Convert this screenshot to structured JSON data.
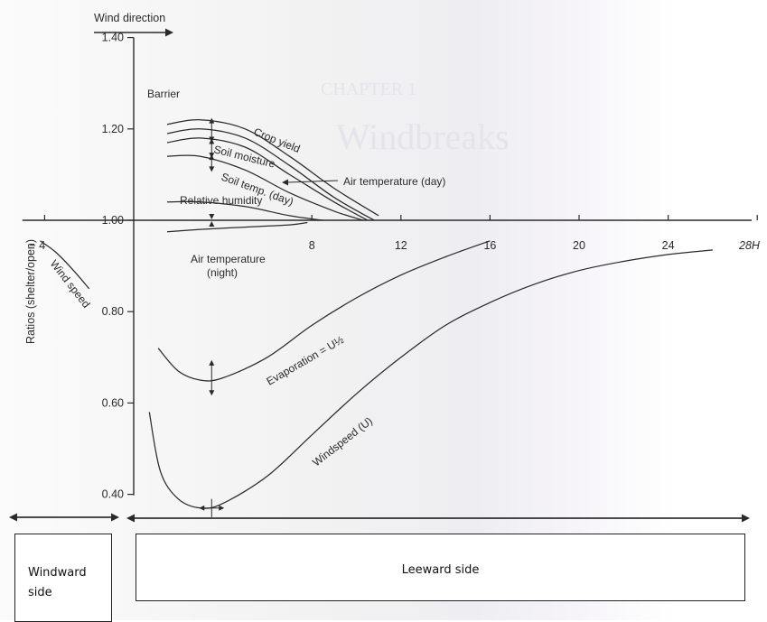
{
  "figure": {
    "wind_direction_label": "Wind direction",
    "barrier_label": "Barrier",
    "ylabel": "Ratios (shelter/open)",
    "x_unit_label": "28H",
    "windward_label": "Windward side",
    "leeward_label": "Leeward side"
  },
  "chart_data": {
    "type": "line",
    "xlabel": "",
    "ylabel": "Ratios (shelter/open)",
    "x_ticks": [
      -4,
      8,
      12,
      16,
      20,
      24,
      28
    ],
    "x_tick_labels": [
      "− 4",
      "8",
      "12",
      "16",
      "20",
      "24",
      "28H"
    ],
    "y_ticks": [
      0.4,
      0.6,
      0.8,
      1.0,
      1.2,
      1.4
    ],
    "y_tick_labels": [
      "0.40",
      "0.60",
      "0.80",
      "1.00",
      "1.20",
      "1.40"
    ],
    "xlim": [
      -5,
      28.5
    ],
    "ylim": [
      0.35,
      1.43
    ],
    "grid": false,
    "series": [
      {
        "name": "Crop yield",
        "x": [
          1.5,
          3,
          5,
          7,
          9,
          11
        ],
        "y": [
          1.21,
          1.22,
          1.2,
          1.14,
          1.07,
          1.01
        ]
      },
      {
        "name": "Soil moisture",
        "x": [
          1.5,
          3,
          5,
          7,
          9,
          10.5
        ],
        "y": [
          1.17,
          1.18,
          1.16,
          1.1,
          1.04,
          1.0
        ]
      },
      {
        "name": "Soil temp. (day)",
        "x": [
          1.5,
          3,
          5,
          7,
          9,
          10.3
        ],
        "y": [
          1.14,
          1.14,
          1.11,
          1.06,
          1.02,
          1.0
        ]
      },
      {
        "name": "Relative humidity",
        "x": [
          1.5,
          3,
          5,
          7,
          8.5
        ],
        "y": [
          1.04,
          1.04,
          1.03,
          1.01,
          1.0
        ]
      },
      {
        "name": "Air temperature (day)",
        "x": [
          1.5,
          3,
          5,
          7,
          9,
          10.8
        ],
        "y": [
          1.19,
          1.2,
          1.18,
          1.12,
          1.05,
          1.0
        ]
      },
      {
        "name": "Air temperature (night)",
        "x": [
          1.5,
          3,
          5,
          7,
          7.8
        ],
        "y": [
          0.975,
          0.98,
          0.985,
          0.99,
          0.995
        ]
      },
      {
        "name": "Wind speed",
        "x": [
          -4.2,
          -3.5,
          -2.7,
          -2.0
        ],
        "y": [
          0.955,
          0.93,
          0.89,
          0.85
        ]
      },
      {
        "name": "Evaporation = U^1/2",
        "x": [
          1.1,
          2,
          3,
          4,
          6,
          8,
          10,
          12,
          14,
          16
        ],
        "y": [
          0.72,
          0.67,
          0.65,
          0.655,
          0.7,
          0.77,
          0.83,
          0.88,
          0.92,
          0.955
        ]
      },
      {
        "name": "Windspeed (U)",
        "x": [
          0.7,
          1.2,
          2,
          3,
          4,
          6,
          8,
          10,
          12,
          14,
          16,
          18,
          20,
          22,
          24,
          26
        ],
        "y": [
          0.58,
          0.45,
          0.39,
          0.37,
          0.38,
          0.44,
          0.53,
          0.62,
          0.7,
          0.77,
          0.82,
          0.86,
          0.89,
          0.91,
          0.925,
          0.935
        ]
      }
    ],
    "curve_labels": [
      {
        "text": "Crop yield"
      },
      {
        "text": "Soil moisture"
      },
      {
        "text": "Soil temp. (day)"
      },
      {
        "text": "Relative humidity"
      },
      {
        "text": "Air temperature (day)"
      },
      {
        "text": "Air temperature"
      },
      {
        "text": "(night)"
      },
      {
        "text": "Wind speed"
      },
      {
        "text": "Evaporation = U½"
      },
      {
        "text": "Windspeed (U)"
      }
    ],
    "colors": {
      "ink": "#2a2a2a",
      "page": "#f2f2f2"
    }
  }
}
